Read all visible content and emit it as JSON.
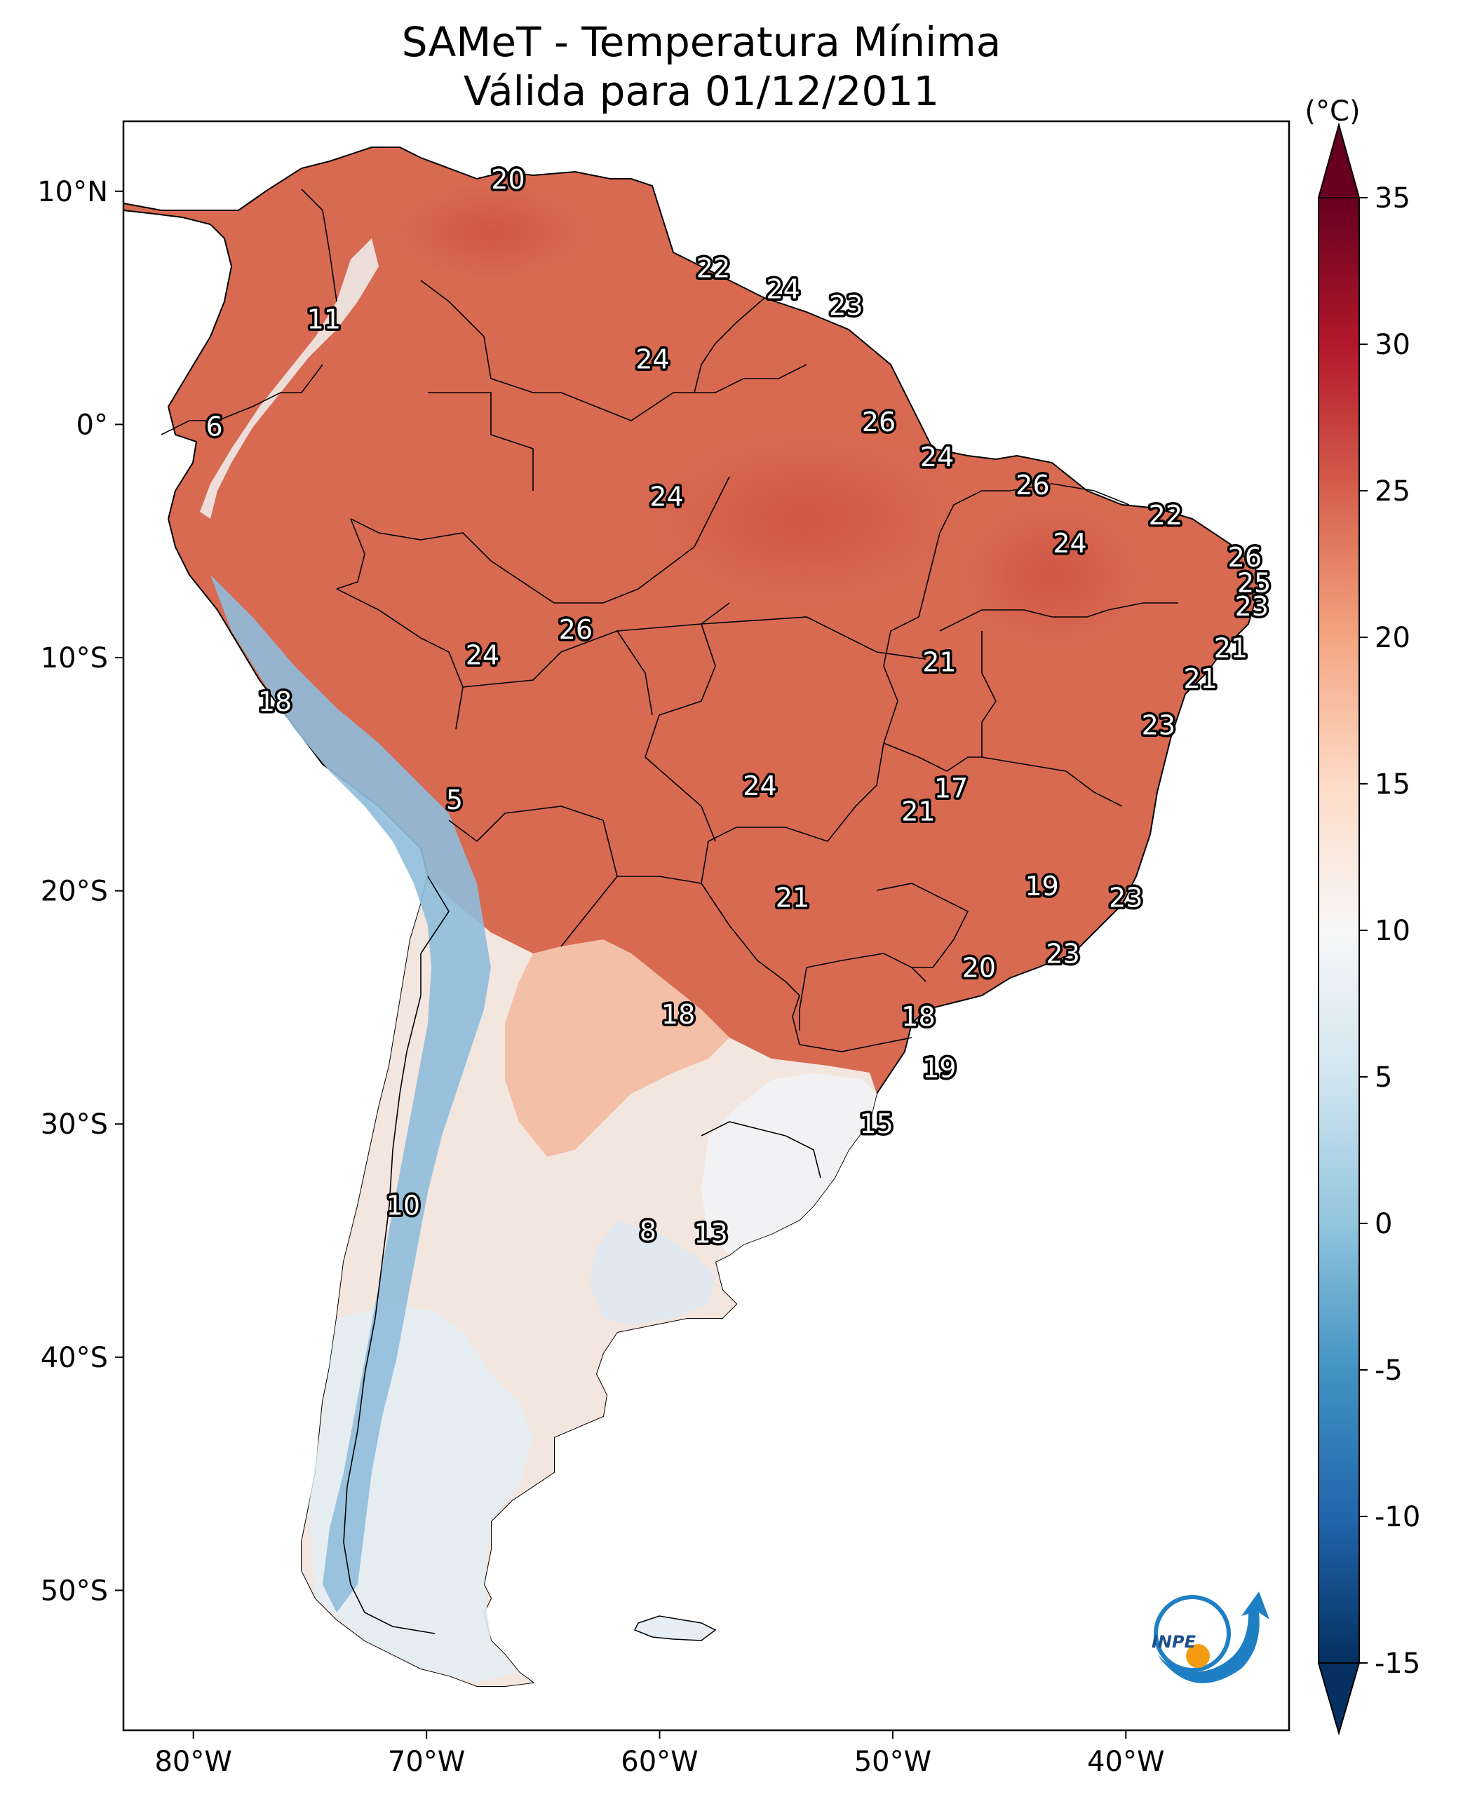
{
  "title_line1": "SAMeT - Temperatura Mínima",
  "title_line2": "Válida para 01/12/2011",
  "colorbar": {
    "unit": "(°C)",
    "min": -15,
    "max": 35,
    "ticks": [
      "35",
      "30",
      "25",
      "20",
      "15",
      "10",
      "5",
      "0",
      "-5",
      "-10",
      "-15"
    ],
    "colors": [
      "#053061",
      "#2166ac",
      "#4393c3",
      "#92c5de",
      "#d1e5f0",
      "#f7f7f7",
      "#fddbc7",
      "#f4a582",
      "#d6604d",
      "#b2182b",
      "#67001f"
    ]
  },
  "axes": {
    "lon_ticks": [
      "80°W",
      "70°W",
      "60°W",
      "50°W",
      "40°W"
    ],
    "lat_ticks": [
      "10°N",
      "0°",
      "10°S",
      "20°S",
      "30°S",
      "40°S",
      "50°S"
    ],
    "lon_range": [
      -83,
      -33
    ],
    "lat_range": [
      -56,
      13
    ]
  },
  "logo_text": "INPE",
  "colors": {
    "land_warm": "#d86a52",
    "land_mid": "#ee9f82",
    "land_cool": "#f4ece6",
    "land_cold": "#c6dceb",
    "andes_cold": "#7fb0d6",
    "logo_blue": "#1f7fc4",
    "logo_orange": "#f39c12"
  },
  "labels": [
    {
      "text": "20",
      "lon": -66.5,
      "lat": 10.5
    },
    {
      "text": "11",
      "lon": -74.4,
      "lat": 4.5
    },
    {
      "text": "22",
      "lon": -57.7,
      "lat": 6.7
    },
    {
      "text": "24",
      "lon": -54.7,
      "lat": 5.8
    },
    {
      "text": "23",
      "lon": -52.0,
      "lat": 5.1
    },
    {
      "text": "24",
      "lon": -60.3,
      "lat": 2.8
    },
    {
      "text": "6",
      "lon": -79.1,
      "lat": -0.1
    },
    {
      "text": "26",
      "lon": -50.6,
      "lat": 0.1
    },
    {
      "text": "24",
      "lon": -48.1,
      "lat": -1.4
    },
    {
      "text": "26",
      "lon": -44.0,
      "lat": -2.6
    },
    {
      "text": "24",
      "lon": -59.7,
      "lat": -3.1
    },
    {
      "text": "22",
      "lon": -38.3,
      "lat": -3.9
    },
    {
      "text": "24",
      "lon": -42.4,
      "lat": -5.1
    },
    {
      "text": "26",
      "lon": -34.9,
      "lat": -5.7
    },
    {
      "text": "25",
      "lon": -34.5,
      "lat": -6.8
    },
    {
      "text": "23",
      "lon": -34.6,
      "lat": -7.8
    },
    {
      "text": "26",
      "lon": -63.6,
      "lat": -8.8
    },
    {
      "text": "21",
      "lon": -35.5,
      "lat": -9.6
    },
    {
      "text": "24",
      "lon": -67.6,
      "lat": -9.9
    },
    {
      "text": "21",
      "lon": -48.0,
      "lat": -10.2
    },
    {
      "text": "21",
      "lon": -36.8,
      "lat": -10.9
    },
    {
      "text": "18",
      "lon": -76.5,
      "lat": -11.9
    },
    {
      "text": "23",
      "lon": -38.6,
      "lat": -12.9
    },
    {
      "text": "24",
      "lon": -55.7,
      "lat": -15.5
    },
    {
      "text": "17",
      "lon": -47.5,
      "lat": -15.6
    },
    {
      "text": "5",
      "lon": -68.8,
      "lat": -16.1
    },
    {
      "text": "21",
      "lon": -48.9,
      "lat": -16.6
    },
    {
      "text": "19",
      "lon": -43.6,
      "lat": -19.8
    },
    {
      "text": "21",
      "lon": -54.3,
      "lat": -20.3
    },
    {
      "text": "23",
      "lon": -40.0,
      "lat": -20.3
    },
    {
      "text": "23",
      "lon": -42.7,
      "lat": -22.7
    },
    {
      "text": "20",
      "lon": -46.3,
      "lat": -23.3
    },
    {
      "text": "18",
      "lon": -59.2,
      "lat": -25.3
    },
    {
      "text": "18",
      "lon": -48.9,
      "lat": -25.4
    },
    {
      "text": "19",
      "lon": -48.0,
      "lat": -27.6
    },
    {
      "text": "15",
      "lon": -50.7,
      "lat": -30.0
    },
    {
      "text": "10",
      "lon": -71.0,
      "lat": -33.5
    },
    {
      "text": "8",
      "lon": -60.5,
      "lat": -34.6
    },
    {
      "text": "13",
      "lon": -57.8,
      "lat": -34.7
    }
  ]
}
